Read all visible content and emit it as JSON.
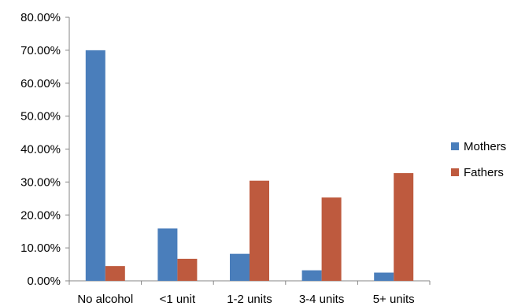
{
  "chart_data": {
    "type": "bar",
    "title": "",
    "xlabel": "",
    "ylabel": "",
    "categories": [
      "No alcohol",
      "<1 unit",
      "1-2 units",
      "3-4 units",
      "5+ units"
    ],
    "series": [
      {
        "name": "Mothers",
        "color": "#4A7EBB",
        "values": [
          70.0,
          15.9,
          8.2,
          3.2,
          2.5
        ]
      },
      {
        "name": "Fathers",
        "color": "#BE5A3E",
        "values": [
          4.5,
          6.7,
          30.4,
          25.3,
          32.7
        ]
      }
    ],
    "ylim": [
      0,
      80
    ],
    "yticks": [
      {
        "value": 0,
        "label": "0.00%"
      },
      {
        "value": 10,
        "label": "10.00%"
      },
      {
        "value": 20,
        "label": "20.00%"
      },
      {
        "value": 30,
        "label": "30.00%"
      },
      {
        "value": 40,
        "label": "40.00%"
      },
      {
        "value": 50,
        "label": "50.00%"
      },
      {
        "value": 60,
        "label": "60.00%"
      },
      {
        "value": 70,
        "label": "70.00%"
      },
      {
        "value": 80,
        "label": "80.00%"
      }
    ],
    "grid": false,
    "legend_position": "right"
  }
}
